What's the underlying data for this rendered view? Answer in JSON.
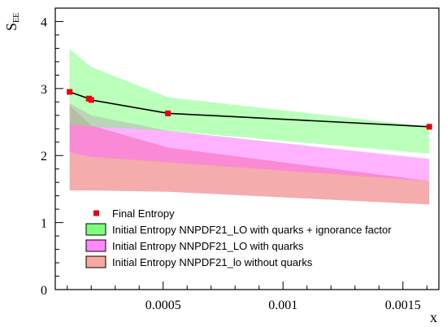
{
  "chart_data": {
    "type": "area",
    "xlabel": "x",
    "ylabel_main": "S",
    "ylabel_sub": "EE",
    "xlim": [
      5e-05,
      0.00165
    ],
    "ylim": [
      0,
      4.2
    ],
    "x_ticks": [
      {
        "value": 0.0005,
        "label": "0.0005"
      },
      {
        "value": 0.001,
        "label": "0.001"
      },
      {
        "value": 0.0015,
        "label": "0.0015"
      }
    ],
    "y_ticks": [
      {
        "value": 0,
        "label": "0"
      },
      {
        "value": 1,
        "label": "1"
      },
      {
        "value": 2,
        "label": "2"
      },
      {
        "value": 3,
        "label": "3"
      },
      {
        "value": 4,
        "label": "4"
      }
    ],
    "bands": [
      {
        "name": "Initial Entropy NNPDF21_lo without quarks",
        "color": "#f08080",
        "opacity": 0.65,
        "x": [
          0.00011,
          0.0002,
          0.00052,
          0.00161
        ],
        "upper": [
          2.75,
          2.45,
          2.12,
          1.62
        ],
        "lower": [
          1.48,
          1.48,
          1.46,
          1.27
        ]
      },
      {
        "name": "Initial Entropy NNPDF21_LO with quarks",
        "color": "#ff66ff",
        "opacity": 0.5,
        "x": [
          0.00011,
          0.0002,
          0.00052,
          0.00161
        ],
        "upper": [
          2.78,
          2.6,
          2.37,
          1.95
        ],
        "lower": [
          2.05,
          1.98,
          1.9,
          1.62
        ]
      },
      {
        "name": "Initial Entropy NNPDF21_LO with quarks + ignorance factor",
        "color": "#66ff66",
        "opacity": 0.45,
        "x": [
          0.00011,
          0.0002,
          0.00052,
          0.00161
        ],
        "upper": [
          3.59,
          3.32,
          2.87,
          2.43
        ],
        "lower": [
          2.46,
          2.43,
          2.37,
          2.03
        ]
      }
    ],
    "series": [
      {
        "name": "Final Entropy",
        "color": "#e8000b",
        "x": [
          0.00011,
          0.00019,
          0.0002,
          0.00052,
          0.00161
        ],
        "y": [
          2.95,
          2.85,
          2.83,
          2.63,
          2.43
        ]
      }
    ],
    "line_color": "#000000",
    "legend": [
      {
        "label": "Final Entropy",
        "kind": "marker",
        "color": "#e8000b"
      },
      {
        "label": "Initial Entropy NNPDF21_LO with quarks + ignorance factor",
        "kind": "box",
        "color": "#7dff7d"
      },
      {
        "label": "Initial Entropy NNPDF21_LO with quarks",
        "kind": "box",
        "color": "#ff88ff"
      },
      {
        "label": "Initial Entropy NNPDF21_lo without quarks",
        "kind": "box",
        "color": "#f7a9a0"
      }
    ],
    "legend_position": "bottom-left",
    "grid": false
  }
}
